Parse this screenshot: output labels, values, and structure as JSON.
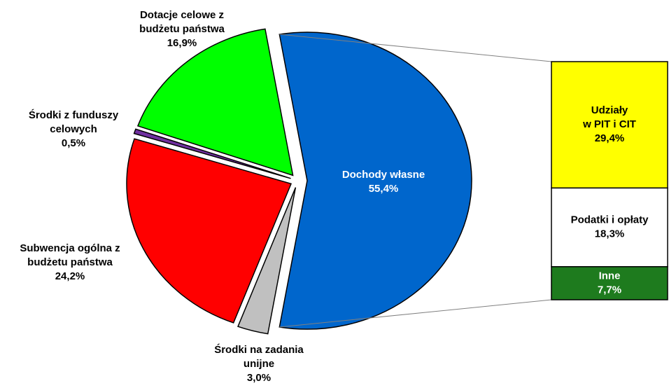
{
  "chart_data": {
    "type": "pie",
    "categories": [
      "Dochody własne",
      "Środki na zadania\nunijne",
      "Subwencja ogólna z\nbudżetu państwa",
      "Środki z funduszy\ncelowych",
      "Dotacje celowe z\nbudżetu państwa"
    ],
    "values": [
      55.4,
      3.0,
      24.2,
      0.5,
      16.9
    ],
    "value_labels": [
      "55,4%",
      "3,0%",
      "24,2%",
      "0,5%",
      "16,9%"
    ],
    "colors": [
      "#0066cc",
      "#c0c0c0",
      "#ff0000",
      "#7030a0",
      "#00ff00"
    ],
    "bar": {
      "categories": [
        "Udziały\nw PIT i CIT",
        "Podatki i opłaty",
        "Inne"
      ],
      "values": [
        29.4,
        18.3,
        7.7
      ],
      "value_labels": [
        "29,4%",
        "18,3%",
        "7,7%"
      ],
      "colors": [
        "#ffff00",
        "#ffffff",
        "#1e7b1e"
      ]
    }
  }
}
